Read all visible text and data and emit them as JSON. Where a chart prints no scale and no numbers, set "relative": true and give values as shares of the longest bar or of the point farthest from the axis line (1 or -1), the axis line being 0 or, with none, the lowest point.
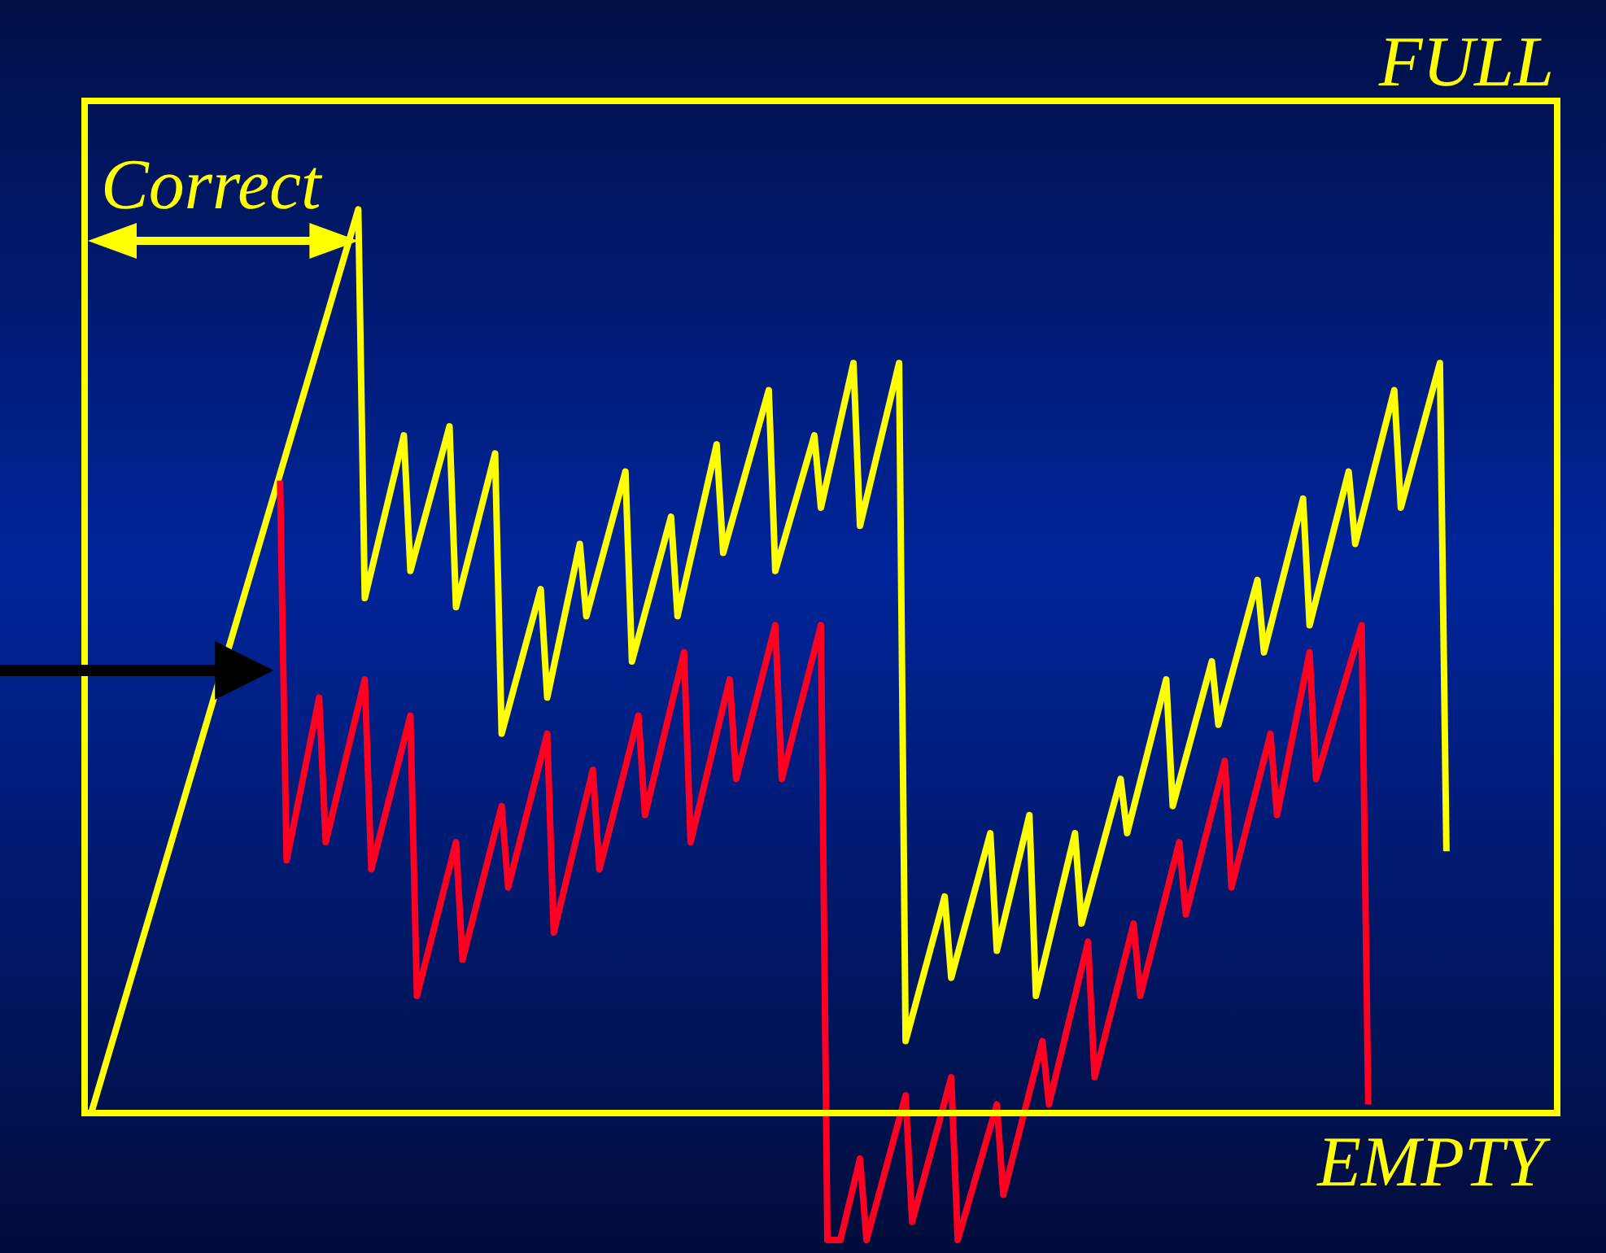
{
  "chart_data": {
    "type": "line",
    "relative": true,
    "marker": "none",
    "categories": [
      null,
      null,
      null,
      null,
      null,
      null,
      null,
      null,
      null,
      null,
      null,
      null,
      null,
      null,
      null,
      null,
      null,
      null,
      null,
      null,
      null,
      null,
      null,
      null,
      null,
      null,
      null,
      null,
      null,
      null,
      null,
      null,
      null,
      null,
      null,
      null,
      null,
      null,
      null,
      null,
      null,
      null,
      null,
      null,
      null,
      null,
      null,
      null,
      null,
      null,
      null,
      null,
      null,
      null,
      null,
      null,
      null,
      null,
      null,
      null,
      null,
      null,
      null,
      null,
      null,
      null,
      null,
      null,
      null,
      null,
      null,
      null,
      null,
      null,
      null,
      null,
      null,
      null,
      null,
      null,
      null,
      null,
      null,
      null,
      null,
      null,
      null,
      null,
      null,
      null,
      null,
      null,
      null,
      null,
      null,
      null,
      null,
      null,
      null,
      null,
      null,
      null,
      null,
      null,
      null,
      null,
      null,
      null,
      null,
      null,
      null,
      null,
      null,
      null,
      null,
      null,
      null,
      null,
      null,
      null,
      null,
      null,
      null,
      null,
      null,
      null,
      null,
      null,
      null,
      null,
      null,
      null,
      null,
      null,
      null,
      null,
      null,
      null,
      null,
      null,
      null,
      null,
      null,
      null,
      null,
      null,
      null,
      null,
      null,
      null,
      null,
      null,
      null,
      null,
      null,
      null,
      null,
      null,
      null,
      null,
      null,
      null,
      null,
      null,
      null,
      null,
      null,
      null,
      null,
      null,
      null,
      null,
      null,
      null,
      null,
      null,
      null,
      null,
      null,
      null,
      null,
      null,
      null,
      null,
      null,
      null,
      null,
      null,
      null,
      null,
      null,
      null,
      null,
      null,
      null,
      null,
      null,
      null,
      null,
      null,
      null,
      null,
      null,
      null,
      null,
      null,
      null,
      null,
      null,
      null,
      null,
      null,
      null,
      null,
      null,
      null,
      null,
      null,
      null,
      null,
      null,
      null,
      null,
      null,
      null,
      null,
      null
    ],
    "series": [
      {
        "color": "#ffff00",
        "values": [
          null,
          0,
          null,
          null,
          null,
          null,
          null,
          null,
          null,
          null,
          null,
          null,
          null,
          null,
          null,
          null,
          null,
          null,
          null,
          null,
          null,
          null,
          null,
          null,
          null,
          null,
          null,
          null,
          null,
          null,
          null,
          null,
          null,
          null,
          null,
          null,
          null,
          null,
          null,
          null,
          null,
          null,
          1,
          0.57,
          null,
          null,
          null,
          null,
          null,
          0.75,
          0.6,
          null,
          null,
          null,
          null,
          null,
          0.76,
          0.56,
          null,
          null,
          null,
          null,
          null,
          0.73,
          0.42,
          null,
          null,
          null,
          null,
          null,
          0.58,
          0.46,
          null,
          null,
          null,
          null,
          0.63,
          0.55,
          null,
          null,
          null,
          null,
          null,
          0.71,
          0.5,
          null,
          null,
          null,
          null,
          null,
          0.66,
          0.55,
          null,
          null,
          null,
          null,
          null,
          0.74,
          0.62,
          null,
          null,
          null,
          null,
          null,
          null,
          0.8,
          0.6,
          null,
          null,
          null,
          null,
          null,
          0.75,
          0.67,
          null,
          null,
          null,
          null,
          0.83,
          0.65,
          null,
          null,
          null,
          null,
          null,
          0.83,
          0.08,
          null,
          null,
          null,
          null,
          null,
          0.24,
          0.15,
          null,
          null,
          null,
          null,
          null,
          0.31,
          0.18,
          null,
          null,
          null,
          null,
          0.33,
          0.13,
          null,
          null,
          null,
          null,
          null,
          0.31,
          0.21,
          null,
          null,
          null,
          null,
          null,
          0.37,
          0.31,
          null,
          null,
          null,
          null,
          null,
          0.48,
          0.34,
          null,
          null,
          null,
          null,
          null,
          0.5,
          0.43,
          null,
          null,
          null,
          null,
          null,
          0.59,
          0.51,
          null,
          null,
          null,
          null,
          null,
          0.68,
          0.54,
          null,
          null,
          null,
          null,
          null,
          0.71,
          0.63,
          null,
          null,
          null,
          null,
          null,
          0.8,
          0.67,
          null,
          null,
          null,
          null,
          null,
          0.83,
          0.29,
          null,
          null,
          null,
          null,
          null,
          null,
          null,
          null,
          null,
          null,
          null,
          null,
          null,
          null,
          null,
          null,
          null
        ]
      },
      {
        "color": "#ff0022",
        "values": [
          null,
          null,
          null,
          null,
          null,
          null,
          null,
          null,
          null,
          null,
          null,
          null,
          null,
          null,
          null,
          null,
          null,
          null,
          null,
          null,
          null,
          null,
          null,
          null,
          null,
          null,
          null,
          null,
          null,
          null,
          0.7,
          0.28,
          null,
          null,
          null,
          null,
          0.46,
          0.3,
          null,
          null,
          null,
          null,
          null,
          0.48,
          0.27,
          null,
          null,
          null,
          null,
          null,
          0.44,
          0.13,
          null,
          null,
          null,
          null,
          null,
          0.3,
          0.17,
          null,
          null,
          null,
          null,
          null,
          0.34,
          0.25,
          null,
          null,
          null,
          null,
          null,
          0.42,
          0.2,
          null,
          null,
          null,
          null,
          null,
          0.38,
          0.27,
          null,
          null,
          null,
          null,
          null,
          0.44,
          0.33,
          null,
          null,
          null,
          null,
          null,
          0.51,
          0.3,
          null,
          null,
          null,
          null,
          null,
          0.48,
          0.37,
          null,
          null,
          null,
          null,
          null,
          0.54,
          0.37,
          null,
          null,
          null,
          null,
          null,
          0.54,
          -0.14,
          null,
          -0.14,
          null,
          null,
          -0.05,
          -0.14,
          null,
          null,
          null,
          null,
          null,
          0.02,
          -0.12,
          null,
          null,
          null,
          null,
          null,
          0.04,
          -0.14,
          null,
          null,
          null,
          null,
          null,
          0.01,
          -0.09,
          null,
          null,
          null,
          null,
          null,
          0.08,
          0.01,
          null,
          null,
          null,
          null,
          null,
          0.19,
          0.04,
          null,
          null,
          null,
          null,
          null,
          0.21,
          0.13,
          null,
          null,
          null,
          null,
          null,
          0.3,
          0.22,
          null,
          null,
          null,
          null,
          null,
          0.39,
          0.25,
          null,
          null,
          null,
          null,
          null,
          0.42,
          0.33,
          null,
          null,
          null,
          null,
          0.51,
          0.37,
          null,
          null,
          null,
          null,
          null,
          null,
          0.54,
          0.01,
          null,
          null,
          null,
          null,
          null,
          null,
          null,
          null,
          null,
          null,
          null,
          null,
          null,
          null,
          null,
          null,
          null,
          null,
          null,
          null,
          null,
          null,
          null,
          null,
          null,
          null,
          null,
          null,
          null
        ]
      }
    ],
    "ref_lines": [
      {
        "axis": "y",
        "value": 1.12,
        "label": "FULL",
        "color": "#ffff00"
      },
      {
        "axis": "y",
        "value": 0,
        "label": "EMPTY",
        "color": "#ffff00"
      }
    ],
    "annotations": [
      "Correct"
    ]
  }
}
